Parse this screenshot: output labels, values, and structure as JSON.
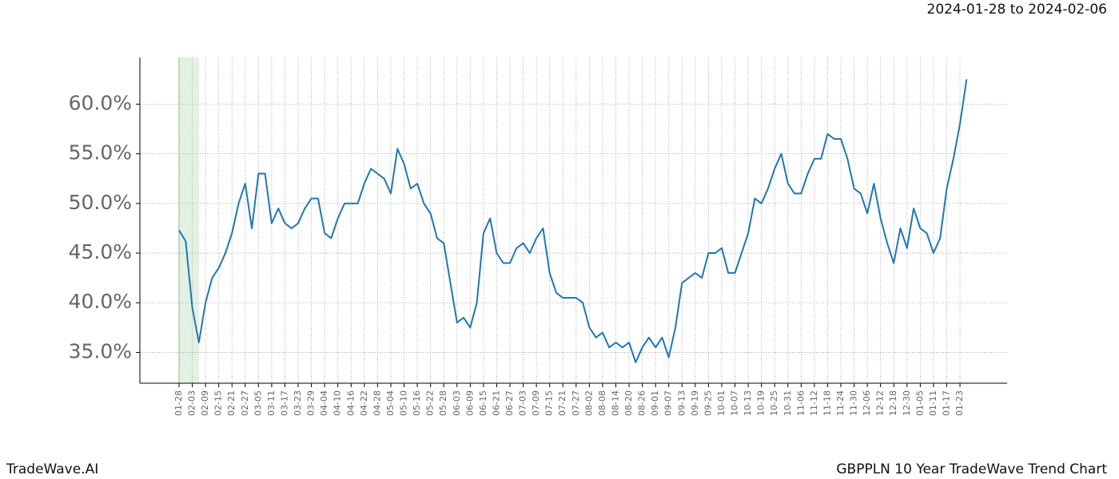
{
  "chart_data": {
    "type": "line",
    "title": "GBPPLN 10 Year TradeWave Trend Chart",
    "subtitle": "2024-01-28 to 2024-02-06",
    "brand": "TradeWave.AI",
    "x": [
      "01-28",
      "01-31",
      "02-03",
      "02-06",
      "02-09",
      "02-12",
      "02-15",
      "02-18",
      "02-21",
      "02-24",
      "02-27",
      "03-02",
      "03-05",
      "03-08",
      "03-11",
      "03-14",
      "03-17",
      "03-20",
      "03-23",
      "03-26",
      "03-29",
      "04-01",
      "04-04",
      "04-07",
      "04-10",
      "04-13",
      "04-16",
      "04-19",
      "04-22",
      "04-25",
      "04-28",
      "05-01",
      "05-04",
      "05-07",
      "05-10",
      "05-13",
      "05-16",
      "05-19",
      "05-22",
      "05-25",
      "05-28",
      "05-31",
      "06-03",
      "06-06",
      "06-09",
      "06-12",
      "06-15",
      "06-18",
      "06-21",
      "06-24",
      "06-27",
      "06-30",
      "07-03",
      "07-06",
      "07-09",
      "07-12",
      "07-15",
      "07-18",
      "07-21",
      "07-24",
      "07-27",
      "07-30",
      "08-02",
      "08-05",
      "08-08",
      "08-11",
      "08-14",
      "08-17",
      "08-20",
      "08-23",
      "08-26",
      "08-29",
      "09-01",
      "09-04",
      "09-07",
      "09-10",
      "09-13",
      "09-16",
      "09-19",
      "09-22",
      "09-25",
      "09-28",
      "10-01",
      "10-04",
      "10-07",
      "10-10",
      "10-13",
      "10-16",
      "10-19",
      "10-22",
      "10-25",
      "10-28",
      "10-31",
      "11-03",
      "11-06",
      "11-09",
      "11-12",
      "11-15",
      "11-18",
      "11-21",
      "11-24",
      "11-27",
      "11-30",
      "12-03",
      "12-06",
      "12-09",
      "12-12",
      "12-15",
      "12-18",
      "12-21",
      "12-30",
      "01-02",
      "01-05",
      "01-08",
      "01-11",
      "01-14",
      "01-17",
      "01-20",
      "01-23",
      "01-26"
    ],
    "xticks": [
      "01-28",
      "02-03",
      "02-09",
      "02-15",
      "02-21",
      "02-27",
      "03-05",
      "03-11",
      "03-17",
      "03-23",
      "03-29",
      "04-04",
      "04-10",
      "04-16",
      "04-22",
      "04-28",
      "05-04",
      "05-10",
      "05-16",
      "05-22",
      "05-28",
      "06-03",
      "06-09",
      "06-15",
      "06-21",
      "06-27",
      "07-03",
      "07-09",
      "07-15",
      "07-21",
      "07-27",
      "08-02",
      "08-08",
      "08-14",
      "08-20",
      "08-26",
      "09-01",
      "09-07",
      "09-13",
      "09-19",
      "09-25",
      "10-01",
      "10-07",
      "10-13",
      "10-19",
      "10-25",
      "10-31",
      "11-06",
      "11-12",
      "11-18",
      "11-24",
      "11-30",
      "12-06",
      "12-12",
      "12-18",
      "12-30",
      "01-05",
      "01-11",
      "01-17",
      "01-23"
    ],
    "series": [
      {
        "color": "#1f77b4",
        "values": [
          47.3,
          46.2,
          39.5,
          36.0,
          40.0,
          42.5,
          43.5,
          45.0,
          47.0,
          50.0,
          52.0,
          47.5,
          53.0,
          53.0,
          48.0,
          49.5,
          48.0,
          47.5,
          48.0,
          49.5,
          50.5,
          50.5,
          47.0,
          46.5,
          48.5,
          50.0,
          50.0,
          50.0,
          52.0,
          53.5,
          53.0,
          52.5,
          51.0,
          55.5,
          54.0,
          51.5,
          52.0,
          50.0,
          49.0,
          46.5,
          46.0,
          42.0,
          38.0,
          38.5,
          37.5,
          40.0,
          47.0,
          48.5,
          45.0,
          44.0,
          44.0,
          45.5,
          46.0,
          45.0,
          46.5,
          47.5,
          43.0,
          41.0,
          40.5,
          40.5,
          40.5,
          40.0,
          37.5,
          36.5,
          37.0,
          35.5,
          36.0,
          35.5,
          36.0,
          34.0,
          35.5,
          36.5,
          35.5,
          36.5,
          34.5,
          37.5,
          42.0,
          42.5,
          43.0,
          42.5,
          45.0,
          45.0,
          45.5,
          43.0,
          43.0,
          45.0,
          47.0,
          50.5,
          50.0,
          51.5,
          53.5,
          55.0,
          52.0,
          51.0,
          51.0,
          53.0,
          54.5,
          54.5,
          57.0,
          56.5,
          56.5,
          54.5,
          51.5,
          51.0,
          49.0,
          52.0,
          48.5,
          46.0,
          44.0,
          47.5,
          45.5,
          49.5,
          47.5,
          47.0,
          45.0,
          46.5,
          51.5,
          54.5,
          58.0,
          62.5
        ]
      }
    ],
    "ylim": [
      31.9,
      64.7
    ],
    "yticks": [
      {
        "value": 35,
        "label": "35.0%"
      },
      {
        "value": 40,
        "label": "40.0%"
      },
      {
        "value": 45,
        "label": "45.0%"
      },
      {
        "value": 50,
        "label": "50.0%"
      },
      {
        "value": 55,
        "label": "55.0%"
      },
      {
        "value": 60,
        "label": "60.0%"
      }
    ],
    "grid": true
  }
}
